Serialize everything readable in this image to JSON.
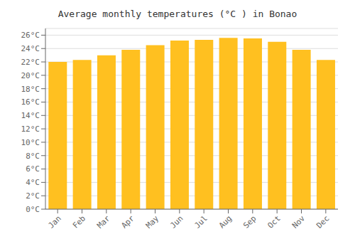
{
  "chart_data": {
    "type": "bar",
    "title": "Average monthly temperatures (°C ) in Bonao",
    "categories": [
      "Jan",
      "Feb",
      "Mar",
      "Apr",
      "May",
      "Jun",
      "Jul",
      "Aug",
      "Sep",
      "Oct",
      "Nov",
      "Dec"
    ],
    "values": [
      22.0,
      22.3,
      23.0,
      23.8,
      24.5,
      25.2,
      25.3,
      25.6,
      25.5,
      25.0,
      23.8,
      22.3
    ],
    "color": "#FFC020",
    "ylim": [
      0,
      27
    ],
    "yticks": [
      {
        "value": 0,
        "label": "0°C"
      },
      {
        "value": 2,
        "label": "2°C"
      },
      {
        "value": 4,
        "label": "4°C"
      },
      {
        "value": 6,
        "label": "6°C"
      },
      {
        "value": 8,
        "label": "8°C"
      },
      {
        "value": 10,
        "label": "10°C"
      },
      {
        "value": 12,
        "label": "12°C"
      },
      {
        "value": 14,
        "label": "14°C"
      },
      {
        "value": 16,
        "label": "16°C"
      },
      {
        "value": 18,
        "label": "18°C"
      },
      {
        "value": 20,
        "label": "20°C"
      },
      {
        "value": 22,
        "label": "22°C"
      },
      {
        "value": 24,
        "label": "24°C"
      },
      {
        "value": 26,
        "label": "26°C"
      }
    ],
    "grid": true
  }
}
